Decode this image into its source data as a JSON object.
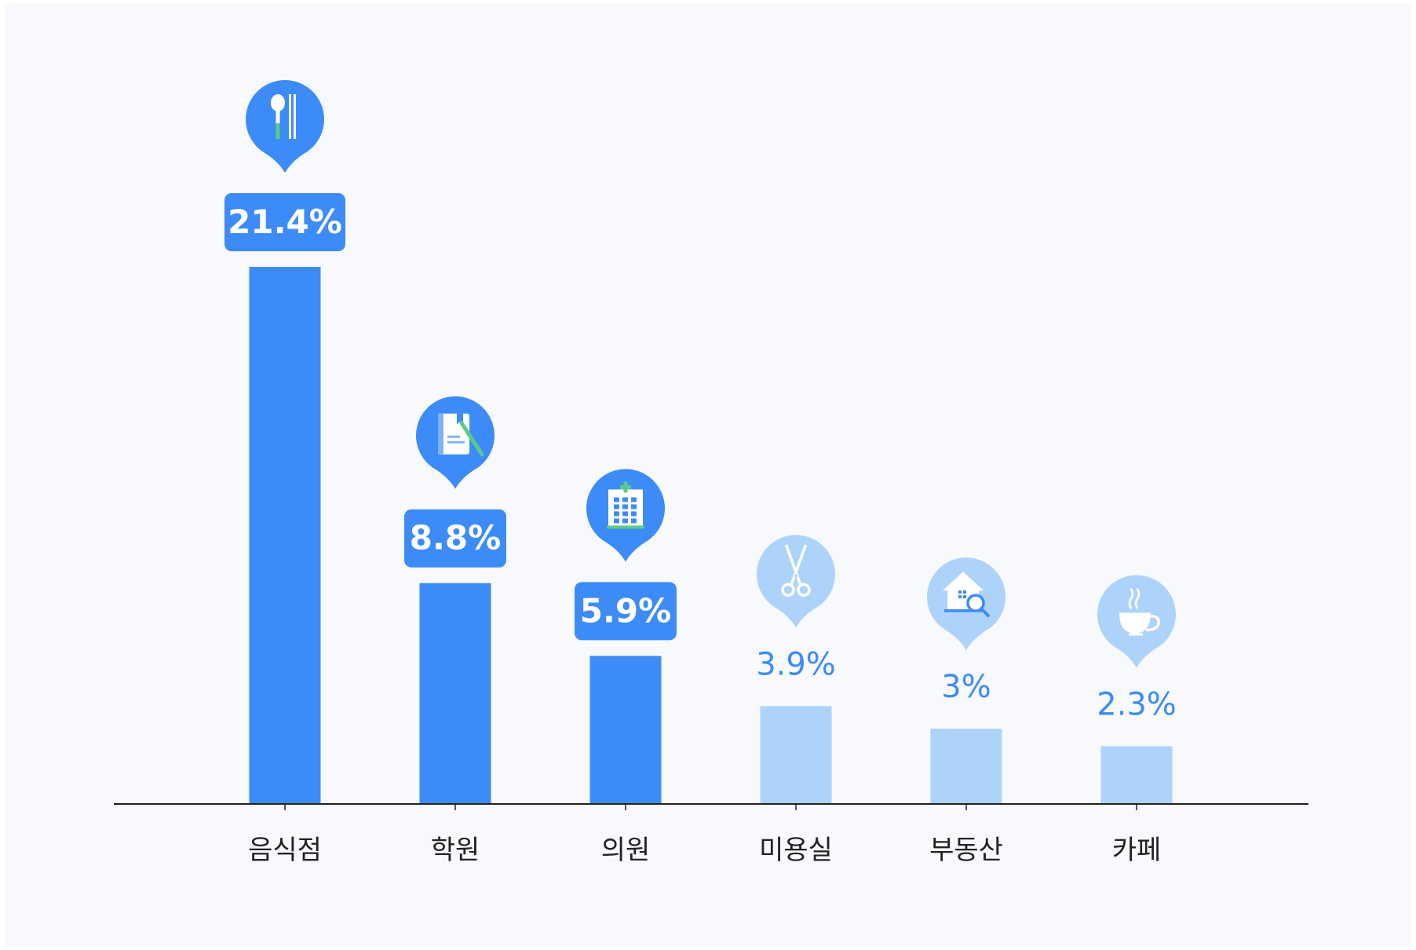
{
  "colors": {
    "background": "#F7F9FC",
    "dark_bar": "#3D8BF7",
    "light_bar": "#AED3FB",
    "axis": "#222222",
    "category_text": "#222222",
    "light_value_text": "#3D8BF7",
    "icon_white": "#FFFFFF",
    "icon_green": "#5CC98A"
  },
  "chart_data": {
    "type": "bar",
    "title": "",
    "xlabel": "",
    "ylabel": "",
    "ylim": [
      0,
      23
    ],
    "grid": false,
    "legend": "none",
    "categories": [
      "음식점",
      "학원",
      "의원",
      "미용실",
      "부동산",
      "카페"
    ],
    "values": [
      21.4,
      8.8,
      5.9,
      3.9,
      3,
      2.3
    ],
    "value_labels": [
      "21.4%",
      "8.8%",
      "5.9%",
      "3.9%",
      "3%",
      "2.3%"
    ],
    "highlighted": [
      true,
      true,
      true,
      false,
      false,
      false
    ],
    "icons": [
      "spoon-chopsticks-icon",
      "book-pencil-icon",
      "hospital-icon",
      "scissors-icon",
      "house-search-icon",
      "coffee-cup-icon"
    ]
  }
}
